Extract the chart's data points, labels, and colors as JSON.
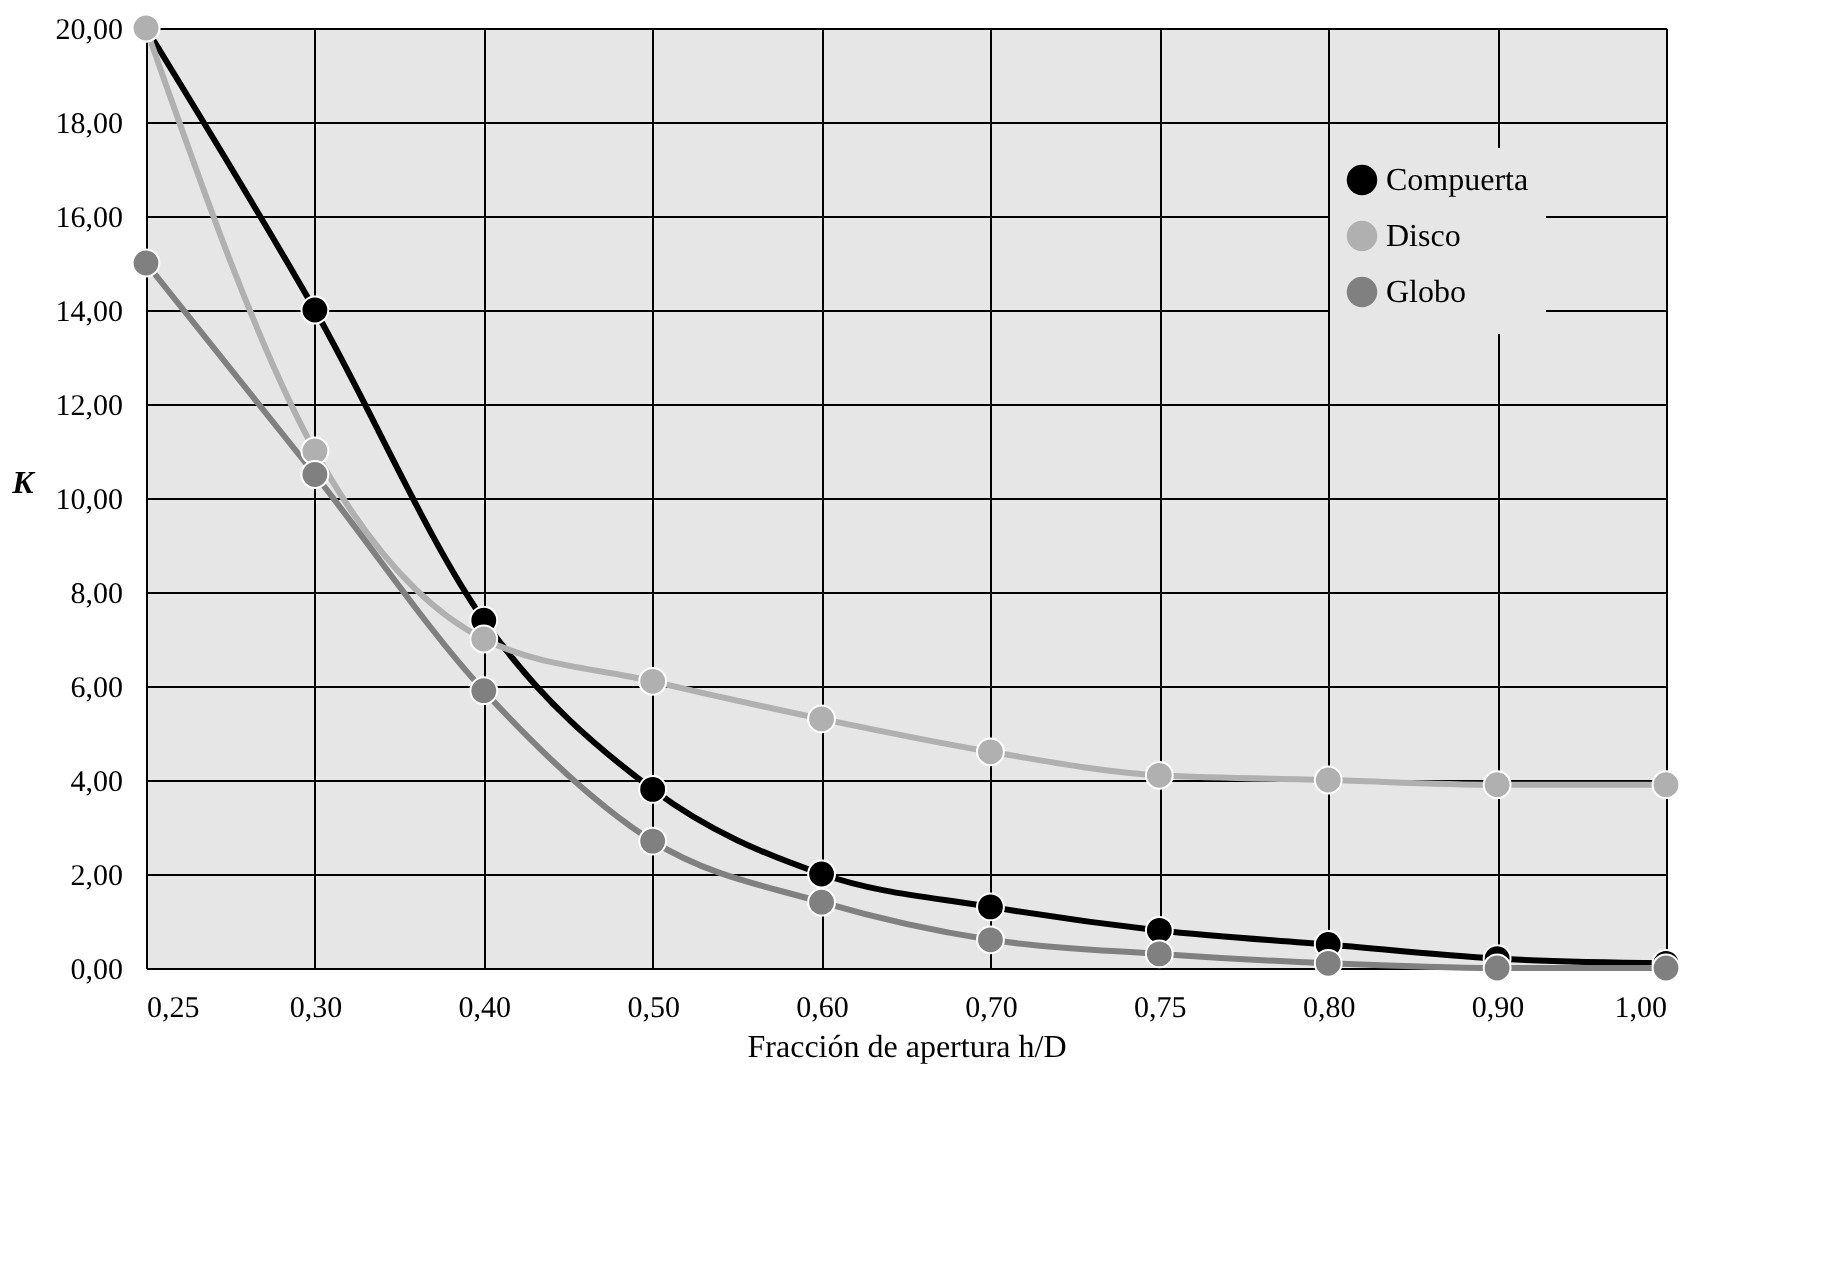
{
  "chart_data": {
    "type": "line",
    "xlabel": "Fracción de apertura h/D",
    "ylabel": "K",
    "categories": [
      "0,25",
      "0,30",
      "0,40",
      "0,50",
      "0,60",
      "0,70",
      "0,75",
      "0,80",
      "0,90",
      "1,00"
    ],
    "series": [
      {
        "name": "Compuerta",
        "color": "#000000",
        "values": [
          20,
          14,
          7.4,
          3.8,
          2.0,
          1.3,
          0.8,
          0.5,
          0.2,
          0.1
        ]
      },
      {
        "name": "Disco",
        "color": "#b0b0b0",
        "values": [
          20,
          11,
          7.0,
          6.1,
          5.3,
          4.6,
          4.1,
          4.0,
          3.9,
          3.9
        ]
      },
      {
        "name": "Globo",
        "color": "#808080",
        "values": [
          15,
          10.5,
          5.9,
          2.7,
          1.4,
          0.6,
          0.3,
          0.1,
          0.0,
          0.0
        ]
      }
    ],
    "ylim": [
      0,
      20
    ],
    "yticks": [
      {
        "value": 0,
        "label": "0,00"
      },
      {
        "value": 2,
        "label": "2,00"
      },
      {
        "value": 4,
        "label": "4,00"
      },
      {
        "value": 6,
        "label": "6,00"
      },
      {
        "value": 8,
        "label": "8,00"
      },
      {
        "value": 10,
        "label": "10,00"
      },
      {
        "value": 12,
        "label": "12,00"
      },
      {
        "value": 14,
        "label": "14,00"
      },
      {
        "value": 16,
        "label": "16,00"
      },
      {
        "value": 18,
        "label": "18,00"
      },
      {
        "value": 20,
        "label": "20,00"
      }
    ],
    "grid": true,
    "legend": "top right",
    "marker": "circle",
    "line_style": "solid"
  }
}
